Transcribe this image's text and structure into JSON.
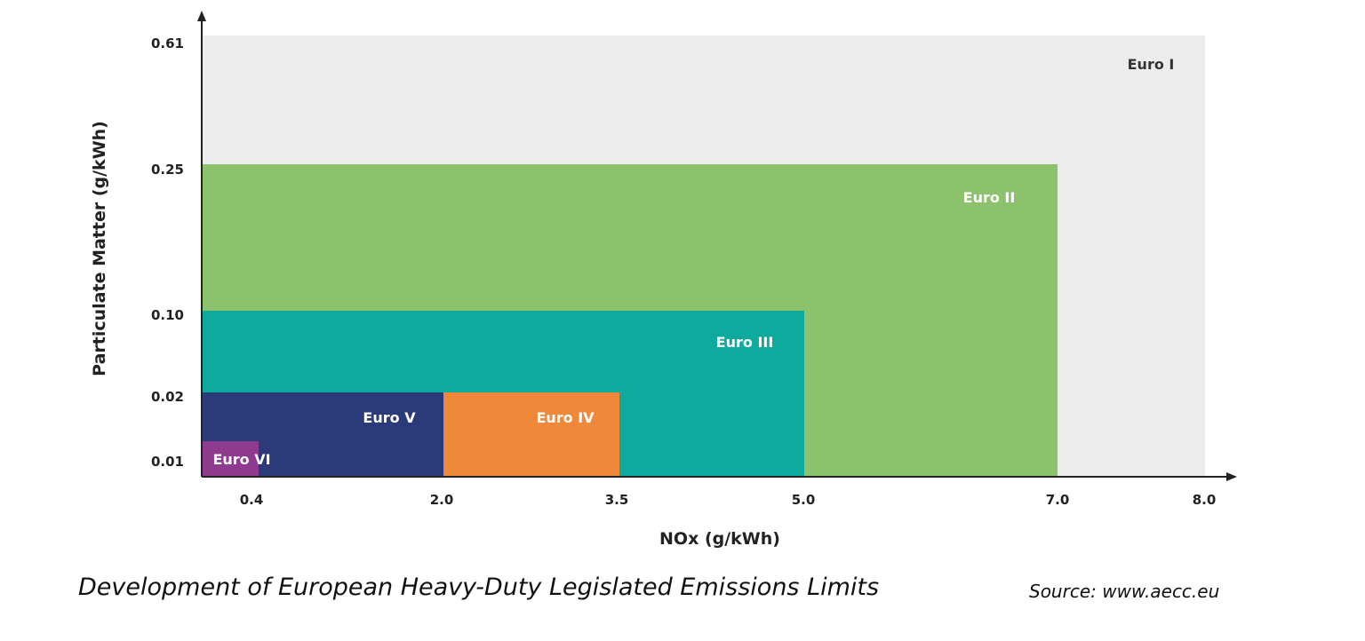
{
  "chart_data": {
    "type": "area",
    "title": "",
    "xlabel": "NOx (g/kWh)",
    "ylabel": "Particulate Matter (g/kWh)",
    "x_ticks": [
      "0.4",
      "2.0",
      "3.5",
      "5.0",
      "7.0",
      "8.0"
    ],
    "y_ticks": [
      "0.01",
      "0.02",
      "0.10",
      "0.25",
      "0.61"
    ],
    "x_scale": "non-linear (tick-spaced)",
    "y_scale": "non-linear (tick-spaced)",
    "grid": false,
    "series": [
      {
        "name": "Euro I",
        "nox": 8.0,
        "pm": 0.61,
        "color": "#ececec",
        "label_color": "#333333"
      },
      {
        "name": "Euro II",
        "nox": 7.0,
        "pm": 0.25,
        "color": "#8bc26b",
        "label_color": "#ffffff"
      },
      {
        "name": "Euro III",
        "nox": 5.0,
        "pm": 0.1,
        "color": "#0eaa9d",
        "label_color": "#ffffff"
      },
      {
        "name": "Euro IV",
        "nox": 3.5,
        "pm": 0.02,
        "nox_from": 2.0,
        "color": "#f0883a",
        "label_color": "#ffffff"
      },
      {
        "name": "Euro V",
        "nox": 2.0,
        "pm": 0.02,
        "color": "#2b3a78",
        "label_color": "#ffffff"
      },
      {
        "name": "Euro VI",
        "nox": 0.4,
        "pm": 0.01,
        "color": "#8e3a8e",
        "label_color": "#ffffff"
      }
    ]
  },
  "caption": "Development of European Heavy-Duty Legislated Emissions Limits",
  "source": "Source: www.aecc.eu"
}
